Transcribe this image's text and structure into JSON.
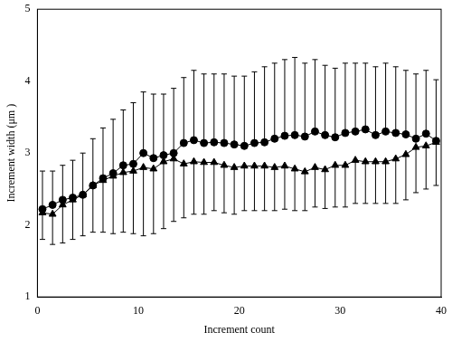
{
  "chart_data": {
    "type": "line",
    "x_label": "Increment count",
    "y_label": "Increment width (μm )",
    "x": [
      0.5,
      1.5,
      2.5,
      3.5,
      4.5,
      5.5,
      6.5,
      7.5,
      8.5,
      9.5,
      10.5,
      11.5,
      12.5,
      13.5,
      14.5,
      15.5,
      16.5,
      17.5,
      18.5,
      19.5,
      20.5,
      21.5,
      22.5,
      23.5,
      24.5,
      25.5,
      26.5,
      27.5,
      28.5,
      29.5,
      30.5,
      31.5,
      32.5,
      33.5,
      34.5,
      35.5,
      36.5,
      37.5,
      38.5,
      39.5
    ],
    "xlim": [
      0,
      40
    ],
    "xticks": [
      0,
      10,
      20,
      30,
      40
    ],
    "ylim": [
      1,
      5
    ],
    "yticks": [
      1,
      2,
      3,
      4,
      5
    ],
    "grid": false,
    "series": [
      {
        "color": "#000000",
        "marker": "circle",
        "line_style": "solid",
        "values": [
          2.22,
          2.28,
          2.35,
          2.38,
          2.42,
          2.55,
          2.65,
          2.72,
          2.83,
          2.85,
          3.0,
          2.93,
          2.97,
          3.0,
          3.14,
          3.18,
          3.14,
          3.15,
          3.14,
          3.12,
          3.1,
          3.14,
          3.15,
          3.2,
          3.24,
          3.25,
          3.23,
          3.3,
          3.25,
          3.22,
          3.28,
          3.3,
          3.33,
          3.25,
          3.3,
          3.28,
          3.26,
          3.2,
          3.27,
          3.17
        ],
        "error_plus": [
          0.53,
          0.47,
          0.48,
          0.52,
          0.58,
          0.65,
          0.7,
          0.75,
          0.77,
          0.85,
          0.85,
          0.89,
          0.85,
          0.9,
          0.91,
          0.97,
          0.96,
          0.95,
          0.96,
          0.95,
          0.97,
          0.99,
          1.05,
          1.05,
          1.06,
          1.08,
          1.02,
          1.0,
          0.97,
          0.96,
          0.97,
          0.95,
          0.92,
          0.95,
          0.95,
          0.92,
          0.89,
          0.9,
          0.88,
          0.85
        ]
      },
      {
        "color": "#000000",
        "marker": "triangle",
        "line_style": "solid",
        "values": [
          2.17,
          2.15,
          2.28,
          2.35,
          2.42,
          2.55,
          2.62,
          2.68,
          2.73,
          2.75,
          2.8,
          2.78,
          2.88,
          2.92,
          2.85,
          2.88,
          2.87,
          2.87,
          2.83,
          2.8,
          2.82,
          2.82,
          2.82,
          2.8,
          2.82,
          2.78,
          2.74,
          2.8,
          2.77,
          2.83,
          2.83,
          2.9,
          2.88,
          2.88,
          2.88,
          2.92,
          2.98,
          3.08,
          3.1,
          3.15
        ],
        "error_minus": [
          0.37,
          0.42,
          0.53,
          0.55,
          0.57,
          0.65,
          0.72,
          0.8,
          0.83,
          0.87,
          0.95,
          0.9,
          0.93,
          0.87,
          0.75,
          0.73,
          0.72,
          0.67,
          0.66,
          0.65,
          0.62,
          0.62,
          0.62,
          0.6,
          0.6,
          0.58,
          0.54,
          0.55,
          0.54,
          0.58,
          0.58,
          0.6,
          0.58,
          0.58,
          0.58,
          0.62,
          0.63,
          0.63,
          0.6,
          0.6
        ]
      }
    ]
  }
}
